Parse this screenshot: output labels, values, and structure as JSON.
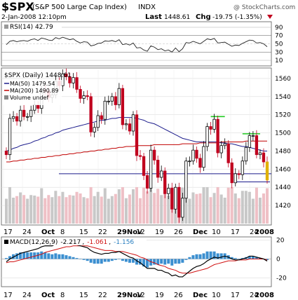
{
  "header": {
    "symbol": "$SPX",
    "name": "(S&P 500 Large Cap Index)",
    "exchange": "INDX",
    "watermark": "@ StockCharts.com",
    "datetime": "2-Jan-2008 12:10pm",
    "last_label": "Last",
    "last_value": "1448.61",
    "chg_label": "Chg",
    "chg_value": "-19.75 (-1.35%)",
    "down_color": "#c0001e"
  },
  "rsi_panel": {
    "label": "RSI(14) 42.79",
    "levels": [
      90,
      70,
      50,
      30,
      10
    ]
  },
  "price_panel": {
    "title": "$SPX (Daily) 1448.61",
    "legend": [
      {
        "text": "MA(50) 1479.54",
        "color": "#1c1c8c"
      },
      {
        "text": "MA(200) 1490.89",
        "color": "#c00000"
      },
      {
        "text": "Volume undef",
        "color": "#888888"
      }
    ],
    "y_ticks": [
      1560,
      1540,
      1520,
      1500,
      1480,
      1460,
      1440,
      1420
    ]
  },
  "macd_panel": {
    "label_prefix": "MACD(12,26,9)",
    "macd_value": "-2.217",
    "signal_value": "-1.061",
    "hist_value": "-1.156",
    "y_ticks": [
      20,
      0,
      -20
    ]
  },
  "x_axis": {
    "labels": [
      "17",
      "24",
      "Oct",
      "8",
      "15",
      "22",
      "29Nov",
      "12",
      "19",
      "26",
      "Dec",
      "10",
      "17",
      "24",
      "2008"
    ],
    "bold": [
      "Oct",
      "29Nov",
      "Dec",
      "2008"
    ]
  },
  "chart_data": {
    "type": "candlestick",
    "x": [
      "Sep 17",
      "Sep 18",
      "Sep 19",
      "Sep 20",
      "Sep 21",
      "Sep 24",
      "Sep 25",
      "Sep 26",
      "Sep 27",
      "Sep 28",
      "Oct 1",
      "Oct 2",
      "Oct 3",
      "Oct 4",
      "Oct 5",
      "Oct 8",
      "Oct 9",
      "Oct 10",
      "Oct 11",
      "Oct 12",
      "Oct 15",
      "Oct 16",
      "Oct 17",
      "Oct 18",
      "Oct 19",
      "Oct 22",
      "Oct 23",
      "Oct 24",
      "Oct 25",
      "Oct 26",
      "Oct 29",
      "Oct 30",
      "Oct 31",
      "Nov 1",
      "Nov 2",
      "Nov 5",
      "Nov 6",
      "Nov 7",
      "Nov 8",
      "Nov 9",
      "Nov 12",
      "Nov 13",
      "Nov 14",
      "Nov 15",
      "Nov 16",
      "Nov 19",
      "Nov 20",
      "Nov 21",
      "Nov 23",
      "Nov 26",
      "Nov 27",
      "Nov 28",
      "Nov 29",
      "Nov 30",
      "Dec 3",
      "Dec 4",
      "Dec 5",
      "Dec 6",
      "Dec 7",
      "Dec 10",
      "Dec 11",
      "Dec 12",
      "Dec 13",
      "Dec 14",
      "Dec 17",
      "Dec 18",
      "Dec 19",
      "Dec 20",
      "Dec 21",
      "Dec 24",
      "Dec 26",
      "Dec 27",
      "Dec 28",
      "Dec 31",
      "Jan 2"
    ],
    "close": [
      1476,
      1516,
      1518,
      1513,
      1525,
      1518,
      1518,
      1525,
      1531,
      1527,
      1547,
      1546,
      1539,
      1542,
      1557,
      1552,
      1565,
      1562,
      1555,
      1561,
      1548,
      1538,
      1541,
      1540,
      1501,
      1506,
      1519,
      1515,
      1535,
      1535,
      1540,
      1531,
      1549,
      1509,
      1510,
      1502,
      1520,
      1475,
      1474,
      1453,
      1439,
      1481,
      1470,
      1451,
      1458,
      1433,
      1439,
      1416,
      1440,
      1407,
      1428,
      1469,
      1469,
      1481,
      1472,
      1462,
      1485,
      1507,
      1504,
      1515,
      1478,
      1486,
      1488,
      1467,
      1445,
      1455,
      1454,
      1469,
      1484,
      1497,
      1497,
      1476,
      1478,
      1468,
      1448
    ],
    "ma50": [
      1480,
      1481,
      1483,
      1484,
      1486,
      1487,
      1488,
      1489,
      1491,
      1492,
      1494,
      1495,
      1497,
      1498,
      1500,
      1501,
      1503,
      1504,
      1505,
      1506,
      1507,
      1508,
      1509,
      1510,
      1511,
      1512,
      1513,
      1514,
      1514,
      1515,
      1516,
      1516,
      1517,
      1517,
      1517,
      1517,
      1517,
      1516,
      1515,
      1514,
      1512,
      1511,
      1510,
      1508,
      1506,
      1504,
      1502,
      1500,
      1498,
      1496,
      1494,
      1493,
      1492,
      1491,
      1490,
      1490,
      1490,
      1490,
      1490,
      1490,
      1490,
      1489,
      1489,
      1488,
      1488,
      1487,
      1486,
      1485,
      1485,
      1484,
      1483,
      1482,
      1481,
      1480,
      1480
    ],
    "ma200": [
      1468,
      1468,
      1469,
      1469,
      1470,
      1470,
      1471,
      1471,
      1472,
      1472,
      1473,
      1473,
      1474,
      1474,
      1475,
      1475,
      1476,
      1476,
      1477,
      1477,
      1478,
      1478,
      1479,
      1479,
      1480,
      1480,
      1481,
      1481,
      1482,
      1482,
      1483,
      1483,
      1484,
      1484,
      1485,
      1485,
      1485,
      1486,
      1486,
      1486,
      1486,
      1486,
      1487,
      1487,
      1487,
      1487,
      1487,
      1487,
      1487,
      1487,
      1488,
      1488,
      1488,
      1488,
      1488,
      1489,
      1489,
      1489,
      1489,
      1489,
      1489,
      1490,
      1490,
      1490,
      1490,
      1490,
      1490,
      1490,
      1491,
      1491,
      1491,
      1491,
      1491,
      1491,
      1491
    ],
    "rsi": [
      48,
      56,
      58,
      55,
      57,
      58,
      56,
      60,
      62,
      58,
      64,
      62,
      59,
      58,
      65,
      62,
      66,
      63,
      60,
      62,
      56,
      52,
      55,
      54,
      45,
      47,
      51,
      52,
      57,
      56,
      58,
      55,
      60,
      48,
      50,
      47,
      52,
      40,
      41,
      35,
      32,
      45,
      42,
      36,
      38,
      33,
      35,
      30,
      40,
      31,
      38,
      53,
      52,
      56,
      53,
      50,
      56,
      62,
      60,
      63,
      52,
      53,
      54,
      49,
      44,
      47,
      46,
      51,
      55,
      59,
      58,
      52,
      53,
      50,
      43
    ],
    "macd": [
      -3,
      0,
      2,
      4,
      6,
      7,
      8,
      9,
      10,
      11,
      13,
      14,
      14,
      14,
      16,
      16,
      17,
      17,
      16,
      16,
      15,
      14,
      13,
      12,
      9,
      7,
      6,
      5,
      6,
      6,
      7,
      7,
      8,
      6,
      4,
      2,
      1,
      -2,
      -4,
      -7,
      -10,
      -10,
      -10,
      -12,
      -12,
      -14,
      -15,
      -18,
      -17,
      -19,
      -19,
      -16,
      -13,
      -10,
      -8,
      -7,
      -5,
      -2,
      0,
      2,
      1,
      2,
      3,
      2,
      0,
      -1,
      -1,
      0,
      1,
      3,
      3,
      2,
      1,
      0,
      -2.217
    ],
    "signal": [
      -4,
      -3,
      -3,
      -2,
      -1,
      0,
      1,
      2,
      3,
      4,
      5,
      7,
      8,
      9,
      10,
      11,
      12,
      13,
      13,
      14,
      14,
      14,
      14,
      14,
      13,
      12,
      11,
      10,
      9,
      9,
      9,
      8,
      8,
      8,
      7,
      6,
      5,
      4,
      2,
      1,
      -1,
      -3,
      -4,
      -6,
      -7,
      -8,
      -10,
      -11,
      -12,
      -14,
      -15,
      -15,
      -15,
      -14,
      -13,
      -12,
      -11,
      -10,
      -8,
      -6,
      -5,
      -4,
      -3,
      -2,
      -2,
      -2,
      -1,
      -1,
      -1,
      0,
      0,
      0,
      0,
      0,
      -1.061
    ],
    "annotations": {
      "support_line": 1455,
      "resistance_segments": [
        {
          "from": "Dec 7",
          "to": "Dec 13",
          "value": 1518
        },
        {
          "from": "Dec 20",
          "to": "Dec 28",
          "value": 1499
        }
      ],
      "lower_support": {
        "from": "Dec 18",
        "to": "Jan 2",
        "value": 1446
      }
    },
    "ylim_price": [
      1400,
      1570
    ],
    "ylim_rsi": [
      0,
      100
    ],
    "ylim_macd": [
      -28,
      22
    ]
  }
}
